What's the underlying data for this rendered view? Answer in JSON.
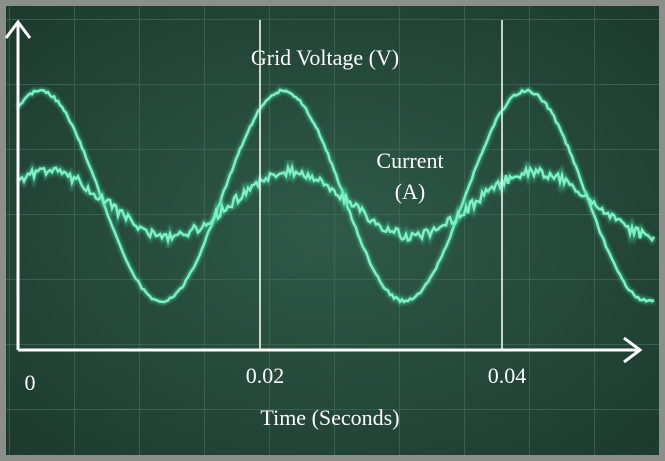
{
  "title": "Grid Voltage (V)",
  "current_label": [
    "Current",
    "(A)"
  ],
  "x_axis": {
    "label": "Time (Seconds)",
    "ticks": [
      0,
      0.02,
      0.04
    ]
  }
}
